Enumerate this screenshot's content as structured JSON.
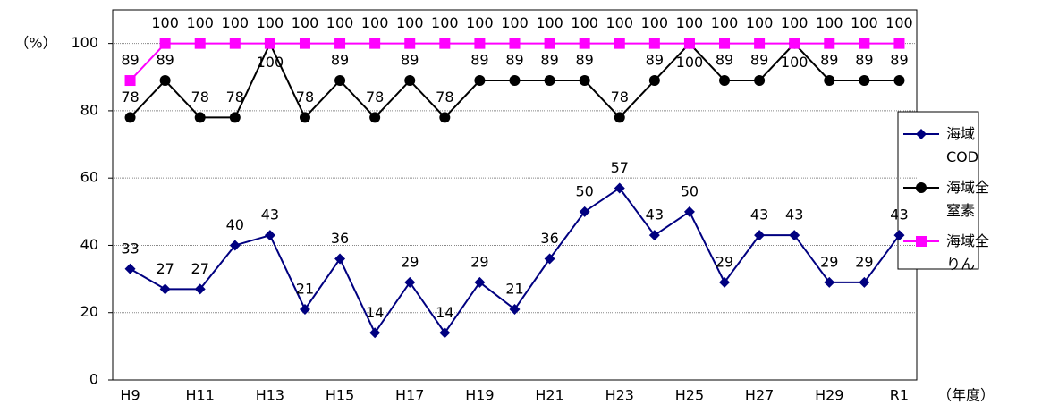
{
  "chart_data": {
    "type": "line",
    "y_label": "（%）",
    "x_label": "（年度）",
    "categories": [
      "H9",
      null,
      "H11",
      null,
      "H13",
      null,
      "H15",
      null,
      "H17",
      null,
      "H19",
      null,
      "H21",
      null,
      "H23",
      null,
      "H25",
      null,
      "H27",
      null,
      "H29",
      null,
      "R1"
    ],
    "series": [
      {
        "name": "海域COD",
        "color": "#000080",
        "marker": "diamond",
        "values": [
          33,
          27,
          27,
          40,
          43,
          21,
          36,
          14,
          29,
          14,
          29,
          21,
          36,
          50,
          57,
          43,
          50,
          29,
          43,
          43,
          29,
          29,
          43
        ]
      },
      {
        "name": "海域全窒素",
        "color": "#000000",
        "marker": "circle",
        "values": [
          78,
          89,
          78,
          78,
          100,
          78,
          89,
          78,
          89,
          78,
          89,
          89,
          89,
          89,
          78,
          89,
          100,
          89,
          89,
          100,
          89,
          89,
          89
        ]
      },
      {
        "name": "海域全りん",
        "color": "#ff00ff",
        "marker": "square",
        "values": [
          89,
          100,
          100,
          100,
          100,
          100,
          100,
          100,
          100,
          100,
          100,
          100,
          100,
          100,
          100,
          100,
          100,
          100,
          100,
          100,
          100,
          100,
          100
        ]
      }
    ],
    "ylim": [
      0,
      110
    ],
    "yticks": [
      0,
      20,
      40,
      60,
      80,
      100
    ],
    "grid": true,
    "legend": "right"
  }
}
